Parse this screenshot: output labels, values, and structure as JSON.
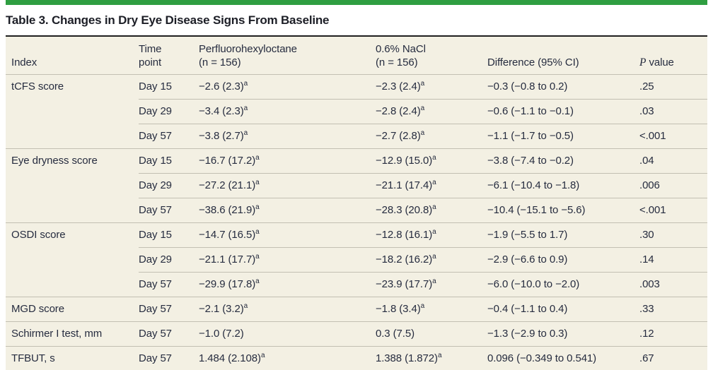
{
  "title": "Table 3. Changes in Dry Eye Disease Signs From Baseline",
  "colors": {
    "accent_green": "#2f9e41",
    "table_background": "#f3f0e3",
    "rule_dark": "#1f1f1f",
    "rule_light": "#c2bfb2",
    "text": "#262c3f"
  },
  "table": {
    "headers": {
      "index": "Index",
      "time_line1": "Time",
      "time_line2": "point",
      "pfho_line1": "Perfluorohexyloctane",
      "pfho_line2": "(n = 156)",
      "nacl_line1": "0.6% NaCl",
      "nacl_line2": "(n = 156)",
      "difference": "Difference (95% CI)",
      "p_italic": "P",
      "p_rest": " value"
    },
    "rows": [
      {
        "index": "tCFS score",
        "time": "Day 15",
        "pfho": "−2.6 (2.3)",
        "pfho_sup": "a",
        "nacl": "−2.3 (2.4)",
        "nacl_sup": "a",
        "diff": "−0.3 (−0.8 to 0.2)",
        "p": ".25"
      },
      {
        "index": "",
        "time": "Day 29",
        "pfho": "−3.4 (2.3)",
        "pfho_sup": "a",
        "nacl": "−2.8 (2.4)",
        "nacl_sup": "a",
        "diff": "−0.6 (−1.1 to −0.1)",
        "p": ".03"
      },
      {
        "index": "",
        "time": "Day 57",
        "pfho": "−3.8 (2.7)",
        "pfho_sup": "a",
        "nacl": "−2.7 (2.8)",
        "nacl_sup": "a",
        "diff": "−1.1 (−1.7 to −0.5)",
        "p": "<.001"
      },
      {
        "index": "Eye dryness score",
        "time": "Day 15",
        "pfho": "−16.7 (17.2)",
        "pfho_sup": "a",
        "nacl": "−12.9 (15.0)",
        "nacl_sup": "a",
        "diff": "−3.8 (−7.4 to −0.2)",
        "p": ".04"
      },
      {
        "index": "",
        "time": "Day 29",
        "pfho": "−27.2 (21.1)",
        "pfho_sup": "a",
        "nacl": "−21.1 (17.4)",
        "nacl_sup": "a",
        "diff": "−6.1 (−10.4 to −1.8)",
        "p": ".006"
      },
      {
        "index": "",
        "time": "Day 57",
        "pfho": "−38.6 (21.9)",
        "pfho_sup": "a",
        "nacl": "−28.3 (20.8)",
        "nacl_sup": "a",
        "diff": "−10.4 (−15.1 to −5.6)",
        "p": "<.001"
      },
      {
        "index": "OSDI score",
        "time": "Day 15",
        "pfho": "−14.7 (16.5)",
        "pfho_sup": "a",
        "nacl": "−12.8 (16.1)",
        "nacl_sup": "a",
        "diff": "−1.9 (−5.5 to 1.7)",
        "p": ".30"
      },
      {
        "index": "",
        "time": "Day 29",
        "pfho": "−21.1 (17.7)",
        "pfho_sup": "a",
        "nacl": "−18.2 (16.2)",
        "nacl_sup": "a",
        "diff": "−2.9 (−6.6 to 0.9)",
        "p": ".14"
      },
      {
        "index": "",
        "time": "Day 57",
        "pfho": "−29.9 (17.8)",
        "pfho_sup": "a",
        "nacl": "−23.9 (17.7)",
        "nacl_sup": "a",
        "diff": "−6.0 (−10.0 to −2.0)",
        "p": ".003"
      },
      {
        "index": "MGD score",
        "time": "Day 57",
        "pfho": "−2.1 (3.2)",
        "pfho_sup": "a",
        "nacl": "−1.8 (3.4)",
        "nacl_sup": "a",
        "diff": "−0.4 (−1.1 to 0.4)",
        "p": ".33"
      },
      {
        "index": "Schirmer I test, mm",
        "time": "Day 57",
        "pfho": "−1.0 (7.2)",
        "pfho_sup": "",
        "nacl": "0.3 (7.5)",
        "nacl_sup": "",
        "diff": "−1.3 (−2.9 to 0.3)",
        "p": ".12"
      },
      {
        "index": "TFBUT, s",
        "time": "Day 57",
        "pfho": "1.484 (2.108)",
        "pfho_sup": "a",
        "nacl": "1.388 (1.872)",
        "nacl_sup": "a",
        "diff": "0.096 (−0.349 to 0.541)",
        "p": ".67"
      }
    ]
  }
}
